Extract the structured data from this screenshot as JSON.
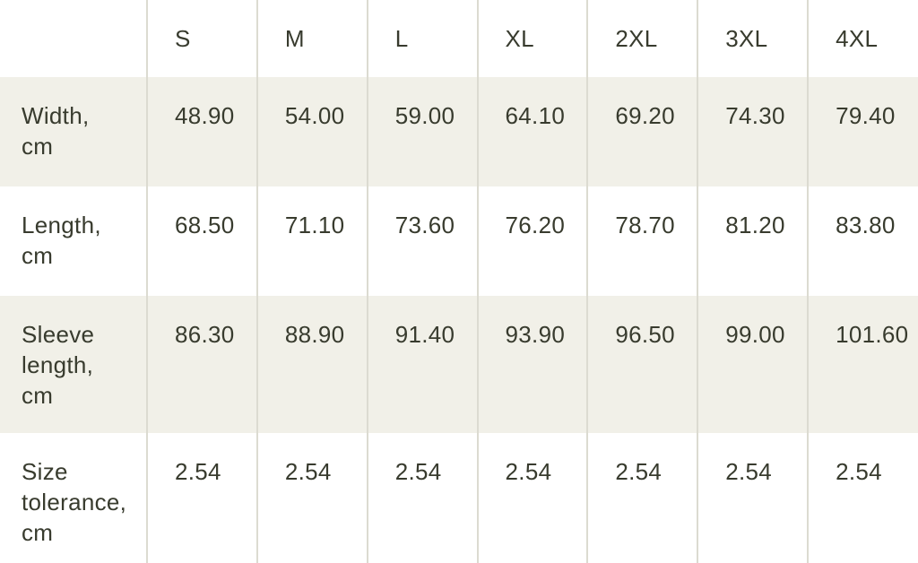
{
  "colors": {
    "background": "#ffffff",
    "row_shaded": "#f1f0e8",
    "border": "#dcdbd1",
    "text": "#383b2e"
  },
  "size_chart": {
    "column_headers": [
      "S",
      "M",
      "L",
      "XL",
      "2XL",
      "3XL",
      "4XL"
    ],
    "rows": [
      {
        "label": "Width, cm",
        "label_lines": [
          "Width,",
          "cm"
        ],
        "values": [
          "48.90",
          "54.00",
          "59.00",
          "64.10",
          "69.20",
          "74.30",
          "79.40"
        ]
      },
      {
        "label": "Length, cm",
        "label_lines": [
          "Length,",
          "cm"
        ],
        "values": [
          "68.50",
          "71.10",
          "73.60",
          "76.20",
          "78.70",
          "81.20",
          "83.80"
        ]
      },
      {
        "label": "Sleeve length, cm",
        "label_lines": [
          "Sleeve",
          "length,",
          "cm"
        ],
        "values": [
          "86.30",
          "88.90",
          "91.40",
          "93.90",
          "96.50",
          "99.00",
          "101.60"
        ]
      },
      {
        "label": "Size tolerance, cm",
        "label_lines": [
          "Size",
          "tolerance,",
          "cm"
        ],
        "values": [
          "2.54",
          "2.54",
          "2.54",
          "2.54",
          "2.54",
          "2.54",
          "2.54"
        ]
      }
    ]
  }
}
